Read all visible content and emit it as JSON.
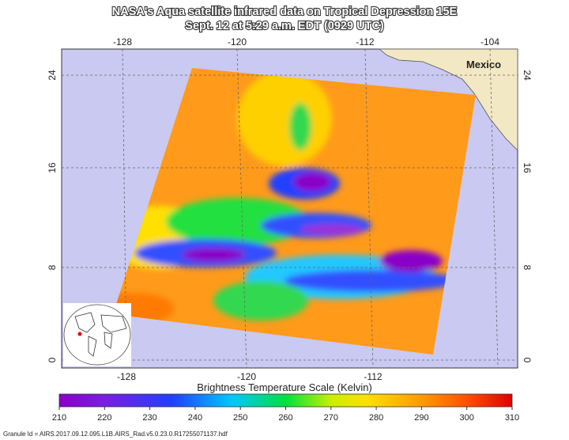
{
  "title": {
    "line1": "NASA's Aqua satellite infrared data on Tropical Depression 15E",
    "line2": "Sept. 12 at 5:29 a.m. EDT (0929 UTC)"
  },
  "map": {
    "top_longitude_labels": [
      "-128",
      "-120",
      "-112",
      "-104"
    ],
    "bottom_longitude_labels": [
      "-128",
      "-120",
      "-112"
    ],
    "left_latitude_labels": [
      "24",
      "16",
      "8",
      "0"
    ],
    "right_latitude_labels": [
      "24",
      "16",
      "8",
      "0"
    ],
    "place_label": "Mexico"
  },
  "colorbar": {
    "title": "Brightness Temperature Scale (Kelvin)",
    "ticks": [
      210,
      220,
      230,
      240,
      250,
      260,
      270,
      280,
      290,
      300,
      310
    ]
  },
  "footer": "Granule Id = AIRS.2017.09.12.095.L1B.AIRS_Rad.v5.0.23.0.R17255071137.hdf"
}
